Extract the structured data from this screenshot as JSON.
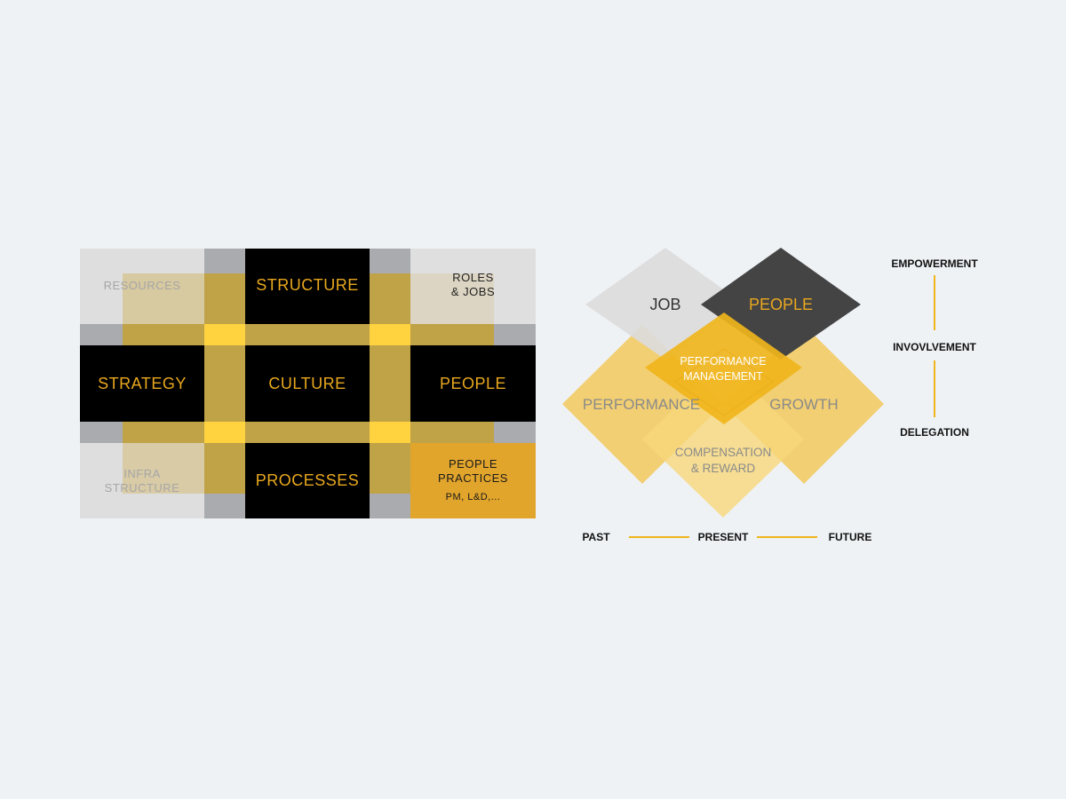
{
  "colors": {
    "background": "#eff2f5",
    "gold": "#f0b51c",
    "dark": "#000000",
    "dark_diamond": "#444444",
    "light_gray": "#dedede",
    "mid_gray": "#a9abaf",
    "gold_text": "#e9a81e"
  },
  "grid": {
    "resources": "RESOURCES",
    "structure": "STRUCTURE",
    "roles_line1": "ROLES",
    "roles_line2": "& JOBS",
    "strategy": "STRATEGY",
    "culture": "CULTURE",
    "people": "PEOPLE",
    "infra_line1": "INFRA",
    "infra_line2": "STRUCTURE",
    "processes": "PROCESSES",
    "practices_line1": "PEOPLE",
    "practices_line2": "PRACTICES",
    "practices_line3": "PM, L&D,..."
  },
  "diamonds": {
    "job": "JOB",
    "people": "PEOPLE",
    "pm_line1": "PERFORMANCE",
    "pm_line2": "MANAGEMENT",
    "performance": "PERFORMANCE",
    "growth": "GROWTH",
    "comp_line1": "COMPENSATION",
    "comp_line2": "& REWARD"
  },
  "timeline": {
    "past": "PAST",
    "present": "PRESENT",
    "future": "FUTURE"
  },
  "involvement_scale": {
    "top": "EMPOWERMENT",
    "middle": "INVOVLVEMENT",
    "bottom": "DELEGATION"
  }
}
